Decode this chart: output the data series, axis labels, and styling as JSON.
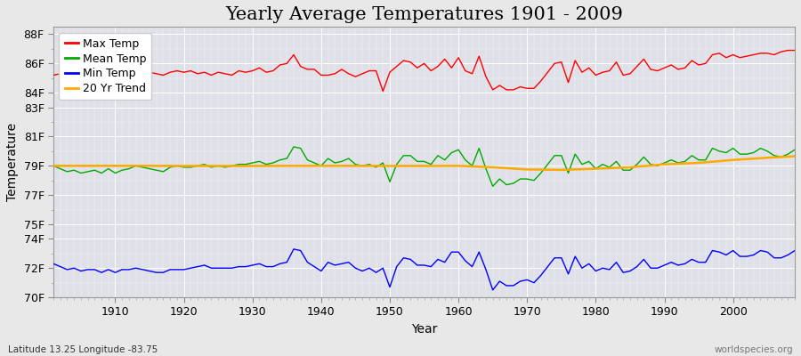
{
  "title": "Yearly Average Temperatures 1901 - 2009",
  "xlabel": "Year",
  "ylabel": "Temperature",
  "bottom_left": "Latitude 13.25 Longitude -83.75",
  "bottom_right": "worldspecies.org",
  "years": [
    1901,
    1902,
    1903,
    1904,
    1905,
    1906,
    1907,
    1908,
    1909,
    1910,
    1911,
    1912,
    1913,
    1914,
    1915,
    1916,
    1917,
    1918,
    1919,
    1920,
    1921,
    1922,
    1923,
    1924,
    1925,
    1926,
    1927,
    1928,
    1929,
    1930,
    1931,
    1932,
    1933,
    1934,
    1935,
    1936,
    1937,
    1938,
    1939,
    1940,
    1941,
    1942,
    1943,
    1944,
    1945,
    1946,
    1947,
    1948,
    1949,
    1950,
    1951,
    1952,
    1953,
    1954,
    1955,
    1956,
    1957,
    1958,
    1959,
    1960,
    1961,
    1962,
    1963,
    1964,
    1965,
    1966,
    1967,
    1968,
    1969,
    1970,
    1971,
    1972,
    1973,
    1974,
    1975,
    1976,
    1977,
    1978,
    1979,
    1980,
    1981,
    1982,
    1983,
    1984,
    1985,
    1986,
    1987,
    1988,
    1989,
    1990,
    1991,
    1992,
    1993,
    1994,
    1995,
    1996,
    1997,
    1998,
    1999,
    2000,
    2001,
    2002,
    2003,
    2004,
    2005,
    2006,
    2007,
    2008,
    2009
  ],
  "max_temp": [
    85.2,
    85.3,
    85.1,
    85.4,
    85.3,
    85.2,
    85.4,
    85.3,
    85.2,
    85.5,
    85.4,
    85.5,
    85.6,
    85.5,
    85.4,
    85.3,
    85.2,
    85.4,
    85.5,
    85.4,
    85.5,
    85.3,
    85.4,
    85.2,
    85.4,
    85.3,
    85.2,
    85.5,
    85.4,
    85.5,
    85.7,
    85.4,
    85.5,
    85.9,
    86.0,
    86.6,
    85.8,
    85.6,
    85.6,
    85.2,
    85.2,
    85.3,
    85.6,
    85.3,
    85.1,
    85.3,
    85.5,
    85.5,
    84.1,
    85.4,
    85.8,
    86.2,
    86.1,
    85.7,
    86.0,
    85.5,
    85.8,
    86.3,
    85.7,
    86.4,
    85.5,
    85.3,
    86.5,
    85.1,
    84.2,
    84.5,
    84.2,
    84.2,
    84.4,
    84.3,
    84.3,
    84.8,
    85.4,
    86.0,
    86.1,
    84.7,
    86.2,
    85.4,
    85.7,
    85.2,
    85.4,
    85.5,
    86.1,
    85.2,
    85.3,
    85.8,
    86.3,
    85.6,
    85.5,
    85.7,
    85.9,
    85.6,
    85.7,
    86.2,
    85.9,
    86.0,
    86.6,
    86.7,
    86.4,
    86.6,
    86.4,
    86.5,
    86.6,
    86.7,
    86.7,
    86.6,
    86.8,
    86.9,
    86.9
  ],
  "mean_temp": [
    79.0,
    78.8,
    78.6,
    78.7,
    78.5,
    78.6,
    78.7,
    78.5,
    78.8,
    78.5,
    78.7,
    78.8,
    79.0,
    78.9,
    78.8,
    78.7,
    78.6,
    78.9,
    79.0,
    78.9,
    78.9,
    79.0,
    79.1,
    78.9,
    79.0,
    78.9,
    79.0,
    79.1,
    79.1,
    79.2,
    79.3,
    79.1,
    79.2,
    79.4,
    79.5,
    80.3,
    80.2,
    79.4,
    79.2,
    79.0,
    79.5,
    79.2,
    79.3,
    79.5,
    79.1,
    79.0,
    79.1,
    78.9,
    79.2,
    77.9,
    79.1,
    79.7,
    79.7,
    79.3,
    79.3,
    79.1,
    79.7,
    79.4,
    79.9,
    80.1,
    79.4,
    79.0,
    80.2,
    78.8,
    77.6,
    78.1,
    77.7,
    77.8,
    78.1,
    78.1,
    78.0,
    78.5,
    79.1,
    79.7,
    79.7,
    78.5,
    79.8,
    79.1,
    79.3,
    78.8,
    79.1,
    78.9,
    79.3,
    78.7,
    78.7,
    79.1,
    79.6,
    79.1,
    79.0,
    79.2,
    79.4,
    79.2,
    79.3,
    79.7,
    79.4,
    79.4,
    80.2,
    80.0,
    79.9,
    80.2,
    79.8,
    79.8,
    79.9,
    80.2,
    80.0,
    79.7,
    79.6,
    79.8,
    80.1
  ],
  "min_temp": [
    72.3,
    72.1,
    71.9,
    72.0,
    71.8,
    71.9,
    71.9,
    71.7,
    71.9,
    71.7,
    71.9,
    71.9,
    72.0,
    71.9,
    71.8,
    71.7,
    71.7,
    71.9,
    71.9,
    71.9,
    72.0,
    72.1,
    72.2,
    72.0,
    72.0,
    72.0,
    72.0,
    72.1,
    72.1,
    72.2,
    72.3,
    72.1,
    72.1,
    72.3,
    72.4,
    73.3,
    73.2,
    72.4,
    72.1,
    71.8,
    72.4,
    72.2,
    72.3,
    72.4,
    72.0,
    71.8,
    72.0,
    71.7,
    72.0,
    70.7,
    72.1,
    72.7,
    72.6,
    72.2,
    72.2,
    72.1,
    72.6,
    72.4,
    73.1,
    73.1,
    72.5,
    72.1,
    73.1,
    71.9,
    70.5,
    71.1,
    70.8,
    70.8,
    71.1,
    71.2,
    71.0,
    71.5,
    72.1,
    72.7,
    72.7,
    71.6,
    72.8,
    72.0,
    72.3,
    71.8,
    72.0,
    71.9,
    72.4,
    71.7,
    71.8,
    72.1,
    72.6,
    72.0,
    72.0,
    72.2,
    72.4,
    72.2,
    72.3,
    72.6,
    72.4,
    72.4,
    73.2,
    73.1,
    72.9,
    73.2,
    72.8,
    72.8,
    72.9,
    73.2,
    73.1,
    72.7,
    72.7,
    72.9,
    73.2
  ],
  "trend_years": [
    1901,
    1905,
    1910,
    1915,
    1920,
    1925,
    1930,
    1935,
    1940,
    1945,
    1950,
    1955,
    1960,
    1965,
    1970,
    1975,
    1980,
    1985,
    1990,
    1995,
    2000,
    2005,
    2009
  ],
  "trend_temp": [
    79.0,
    79.0,
    79.0,
    79.0,
    78.99,
    78.99,
    78.99,
    79.0,
    79.0,
    79.0,
    78.99,
    78.99,
    79.0,
    78.9,
    78.75,
    78.72,
    78.8,
    78.9,
    79.1,
    79.2,
    79.4,
    79.55,
    79.65
  ],
  "max_color": "#ff0000",
  "mean_color": "#00aa00",
  "min_color": "#0000ff",
  "trend_color": "#ffaa00",
  "bg_color": "#e8e8e8",
  "plot_bg_color": "#e0e0e8",
  "ylim": [
    70,
    88.5
  ],
  "yticks": [
    70,
    72,
    74,
    75,
    77,
    79,
    81,
    83,
    84,
    86,
    88
  ],
  "ytick_labels": [
    "70F",
    "72F",
    "74F",
    "75F",
    "77F",
    "79F",
    "81F",
    "83F",
    "84F",
    "86F",
    "88F"
  ],
  "xlim": [
    1901,
    2009
  ],
  "xticks": [
    1910,
    1920,
    1930,
    1940,
    1950,
    1960,
    1970,
    1980,
    1990,
    2000
  ],
  "title_fontsize": 15,
  "axis_label_fontsize": 10,
  "tick_fontsize": 9,
  "legend_fontsize": 9,
  "linewidth": 1.0,
  "trend_linewidth": 1.8
}
